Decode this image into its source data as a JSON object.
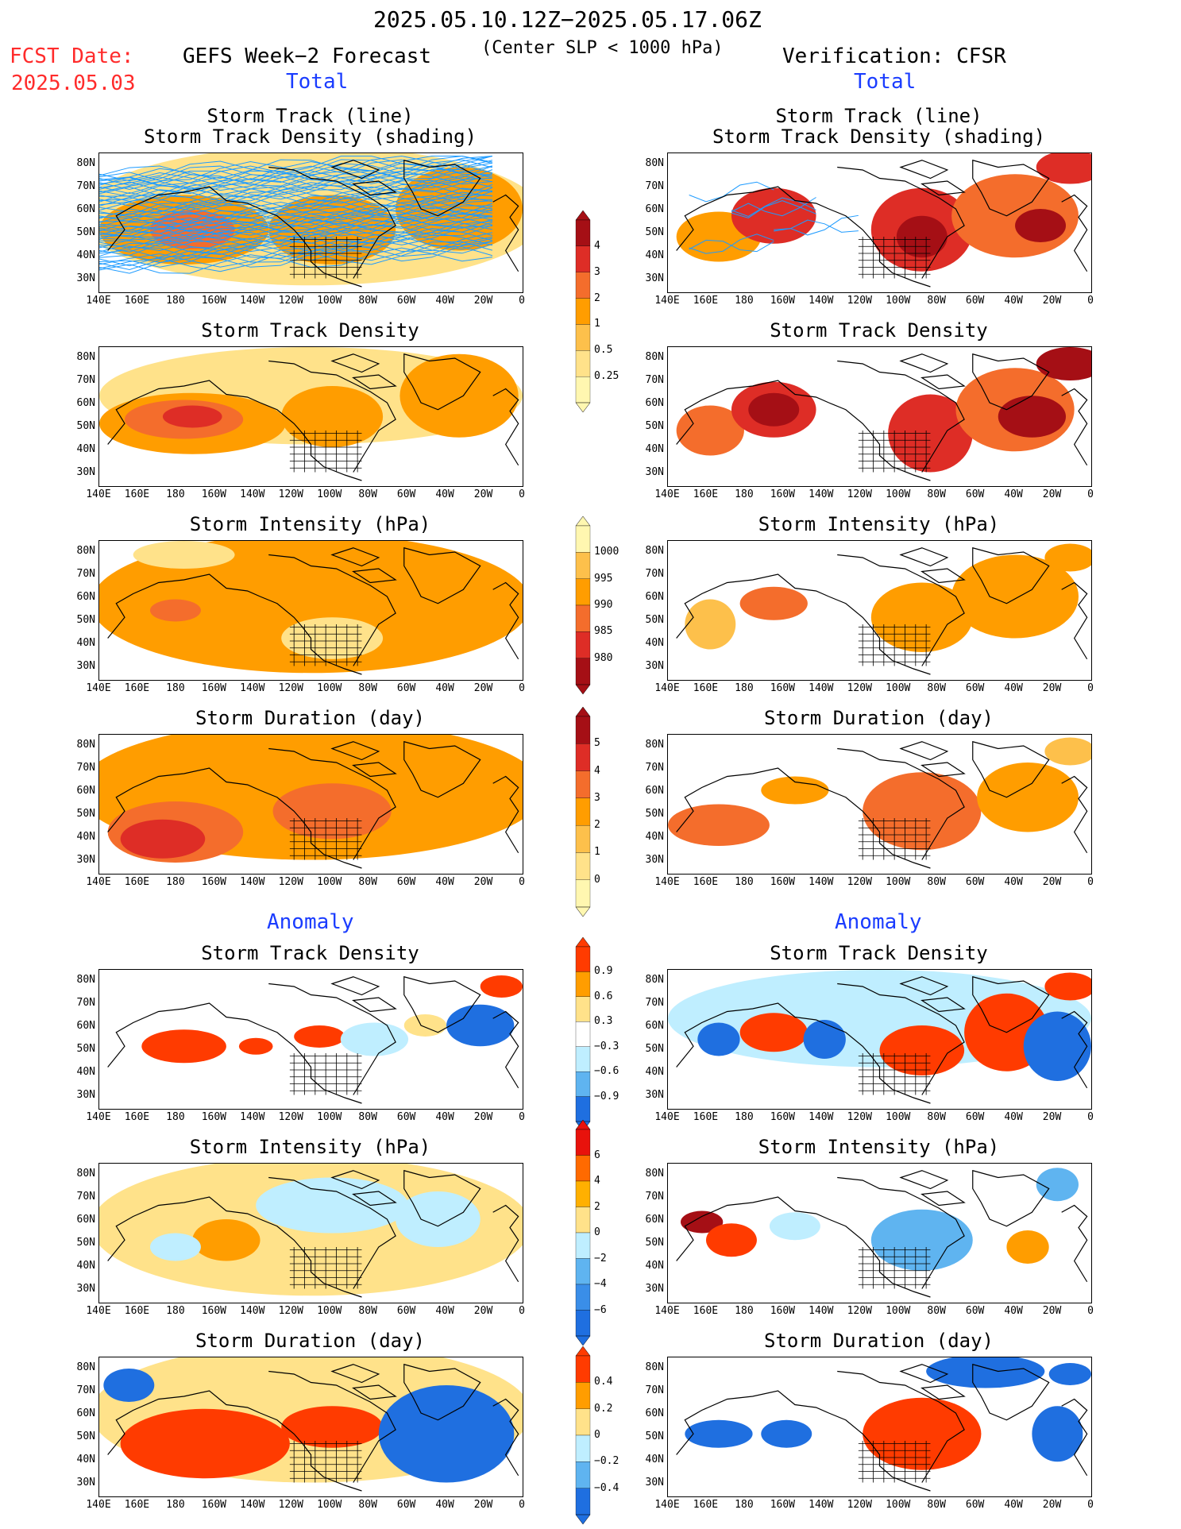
{
  "header": {
    "date_range": "2025.05.10.12Z−2025.05.17.06Z",
    "fcst_label": "FCST Date:",
    "fcst_date": "2025.05.03",
    "left_title": "GEFS Week−2 Forecast",
    "condition": "(Center SLP < 1000 hPa)",
    "right_title": "Verification: CFSR"
  },
  "sections": {
    "total": "Total",
    "anomaly": "Anomaly"
  },
  "axes": {
    "lat_labels": [
      "80N",
      "70N",
      "60N",
      "50N",
      "40N",
      "30N"
    ],
    "lon_labels": [
      "140E",
      "160E",
      "180",
      "160W",
      "140W",
      "120W",
      "100W",
      "80W",
      "60W",
      "40W",
      "20W",
      "0"
    ]
  },
  "panel_titles": {
    "track": [
      "Storm Track (line)",
      "Storm Track Density (shading)"
    ],
    "density": "Storm Track Density",
    "intensity": "Storm Intensity (hPa)",
    "duration": "Storm Duration (day)"
  },
  "colorbars": {
    "density_total": {
      "labels": [
        "4",
        "3",
        "2",
        "1",
        "0.5",
        "0.25"
      ],
      "colors": [
        "#a50f15",
        "#de2d26",
        "#f46d2c",
        "#ff9d00",
        "#fdc04b",
        "#ffe28a",
        "#fff7b0"
      ]
    },
    "intensity_total": {
      "labels": [
        "1000",
        "995",
        "990",
        "985",
        "980"
      ],
      "colors": [
        "#fff7b0",
        "#fdc04b",
        "#ff9d00",
        "#f46d2c",
        "#de2d26",
        "#a50f15"
      ]
    },
    "duration_total": {
      "labels": [
        "5",
        "4",
        "3",
        "2",
        "1",
        "0"
      ],
      "colors": [
        "#a50f15",
        "#de2d26",
        "#f46d2c",
        "#ff9d00",
        "#fdc04b",
        "#ffe28a",
        "#fff7b0"
      ]
    },
    "density_anom": {
      "labels": [
        "0.9",
        "0.6",
        "0.3",
        "−0.3",
        "−0.6",
        "−0.9"
      ],
      "colors": [
        "#ff3b00",
        "#ff9d00",
        "#ffe28a",
        "#ffffff",
        "#bfeeff",
        "#5fb4f0",
        "#1f6fe0"
      ]
    },
    "intensity_anom": {
      "labels": [
        "6",
        "4",
        "2",
        "0",
        "−2",
        "−4",
        "−6"
      ],
      "colors": [
        "#e8120c",
        "#ff6a00",
        "#ffb000",
        "#ffe28a",
        "#bfeeff",
        "#5fb4f0",
        "#3a8ee8",
        "#1f6fe0"
      ]
    },
    "duration_anom": {
      "labels": [
        "0.4",
        "0.2",
        "0",
        "−0.2",
        "−0.4"
      ],
      "colors": [
        "#ff3b00",
        "#ff9d00",
        "#ffe28a",
        "#bfeeff",
        "#5fb4f0",
        "#1f6fe0"
      ]
    }
  },
  "colors": {
    "track_line": "#1e9bff",
    "land_outline": "#000000"
  }
}
